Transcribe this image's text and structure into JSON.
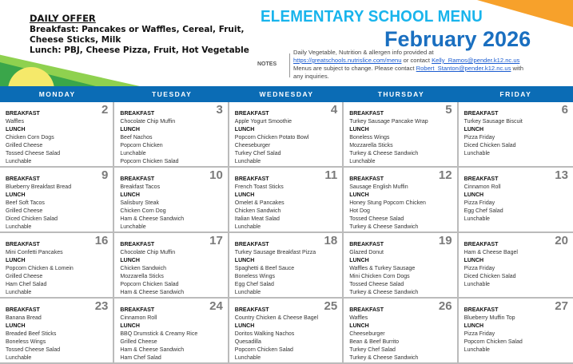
{
  "daily_offer": {
    "heading": "DAILY OFFER",
    "breakfast": "Breakfast: Pancakes or Waffles, Cereal, Fruit, Cheese Sticks, Milk",
    "lunch": "Lunch: PBJ, Cheese Pizza, Fruit, Hot Vegetable"
  },
  "title": "ELEMENTARY SCHOOL MENU",
  "month": "February 2026",
  "notes": {
    "label": "NOTES",
    "line1": "Daily Vegetable, Nutrition & allergen info provided at",
    "link1": "https://greatschools.nutrislice.com/menu",
    "text2": " or contact ",
    "email1": "Kelly_Ramos@pender.k12.nc.us",
    "text3": "Menus are subject to change. Please contact ",
    "email2": "Robert_Stanton@pender.k12.nc.us",
    "text4": " with any inquiries."
  },
  "colors": {
    "header_bar": "#0b6cb5",
    "title": "#18b4ec",
    "month": "#1a6fc0"
  },
  "labels": {
    "breakfast": "BREAKFAST",
    "lunch": "LUNCH"
  },
  "days": [
    "MONDAY",
    "TUESDAY",
    "WEDNESDAY",
    "THURSDAY",
    "FRIDAY"
  ],
  "cells": [
    {
      "num": "2",
      "breakfast": [
        "Waffles"
      ],
      "lunch": [
        "Chicken Corn Dogs",
        "Grilled Cheese",
        "Tossed Cheese Salad",
        "Lunchable"
      ]
    },
    {
      "num": "3",
      "breakfast": [
        "Chocolate Chip Muffin"
      ],
      "lunch": [
        "Beef Nachos",
        "Popcorn Chicken",
        "Lunchable",
        "Popcorn Chicken Salad"
      ]
    },
    {
      "num": "4",
      "breakfast": [
        "Apple Yogurt Smoothie"
      ],
      "lunch": [
        "Popcorn Chicken Potato Bowl",
        "Cheeseburger",
        "Turkey Chef Salad",
        "Lunchable"
      ]
    },
    {
      "num": "5",
      "breakfast": [
        "Turkey Sausage Pancake Wrap"
      ],
      "lunch": [
        "Boneless Wings",
        "Mozzarella Sticks",
        "Turkey & Cheese Sandwich",
        "Lunchable"
      ]
    },
    {
      "num": "6",
      "breakfast": [
        "Turkey Sausage Biscuit"
      ],
      "lunch": [
        "Pizza Friday",
        "Diced Chicken Salad",
        "Lunchable"
      ]
    },
    {
      "num": "9",
      "breakfast": [
        "Blueberry Breakfast Bread"
      ],
      "lunch": [
        "Beef Soft Tacos",
        "Grilled Cheese",
        "Diced Chicken Salad",
        "Lunchable"
      ]
    },
    {
      "num": "10",
      "breakfast": [
        "Breakfast Tacos"
      ],
      "lunch": [
        "Salisbury Steak",
        "Chicken Corn Dog",
        "Ham & Cheese Sandwich",
        "Lunchable"
      ]
    },
    {
      "num": "11",
      "breakfast": [
        "French Toast Sticks"
      ],
      "lunch": [
        "Omelet & Pancakes",
        "Chicken Sandwich",
        "Italian Meat Salad",
        "Lunchable"
      ]
    },
    {
      "num": "12",
      "breakfast": [
        "Sausage English Muffin"
      ],
      "lunch": [
        "Honey Stung Popcorn Chicken",
        "Hot Dog",
        "Tossed Cheese Salad",
        "Turkey & Cheese Sandwich"
      ]
    },
    {
      "num": "13",
      "breakfast": [
        "Cinnamon Roll"
      ],
      "lunch": [
        "Pizza Friday",
        "Egg Chef Salad",
        "Lunchable"
      ]
    },
    {
      "num": "16",
      "breakfast": [
        "Mini Confetti Pancakes"
      ],
      "lunch": [
        "Popcorn Chicken & Lomein",
        "Grilled Cheese",
        "Ham Chef Salad",
        "Lunchable"
      ]
    },
    {
      "num": "17",
      "breakfast": [
        "Chocolate Chip Muffin"
      ],
      "lunch": [
        "Chicken Sandwich",
        "Mozzarella Sticks",
        "Popcorn Chicken Salad",
        "Ham & Cheese Sandwich"
      ]
    },
    {
      "num": "18",
      "breakfast": [
        "Turkey Sausage Breakfast Pizza"
      ],
      "lunch": [
        "Spaghetti & Beef Sauce",
        "Boneless Wings",
        "Egg Chef Salad",
        "Lunchable"
      ]
    },
    {
      "num": "19",
      "breakfast": [
        "Glazed Donut"
      ],
      "lunch": [
        "Waffles & Turkey Sausage",
        "Mini Chicken Corn Dogs",
        "Tossed Cheese Salad",
        "Turkey & Cheese Sandwich"
      ]
    },
    {
      "num": "20",
      "breakfast": [
        "Ham & Cheese Bagel"
      ],
      "lunch": [
        "Pizza Friday",
        "Diced Chicken Salad",
        "Lunchable"
      ]
    },
    {
      "num": "23",
      "breakfast": [
        "Banana Bread"
      ],
      "lunch": [
        "Breaded Beef Sticks",
        "Boneless Wings",
        "Tossed Cheese Salad",
        "Lunchable"
      ]
    },
    {
      "num": "24",
      "breakfast": [
        "Cinnamon Roll"
      ],
      "lunch": [
        "BBQ Drumstick & Creamy Rice",
        "Grilled Cheese",
        "Ham & Cheese Sandwich",
        "Ham Chef Salad"
      ]
    },
    {
      "num": "25",
      "breakfast": [
        "Country Chicken & Cheese Bagel"
      ],
      "lunch": [
        "Doritos Walking Nachos",
        "Quesadilla",
        "Popcorn Chicken Salad",
        "Lunchable"
      ]
    },
    {
      "num": "26",
      "breakfast": [
        "Waffles"
      ],
      "lunch": [
        "Cheeseburger",
        "Bean & Beef Burrito",
        "Turkey Chef Salad",
        "Turkey & Cheese Sandwich"
      ]
    },
    {
      "num": "27",
      "breakfast": [
        "Blueberry Muffin Top"
      ],
      "lunch": [
        "Pizza Friday",
        "Popcorn Chicken Salad",
        "Lunchable"
      ]
    }
  ]
}
